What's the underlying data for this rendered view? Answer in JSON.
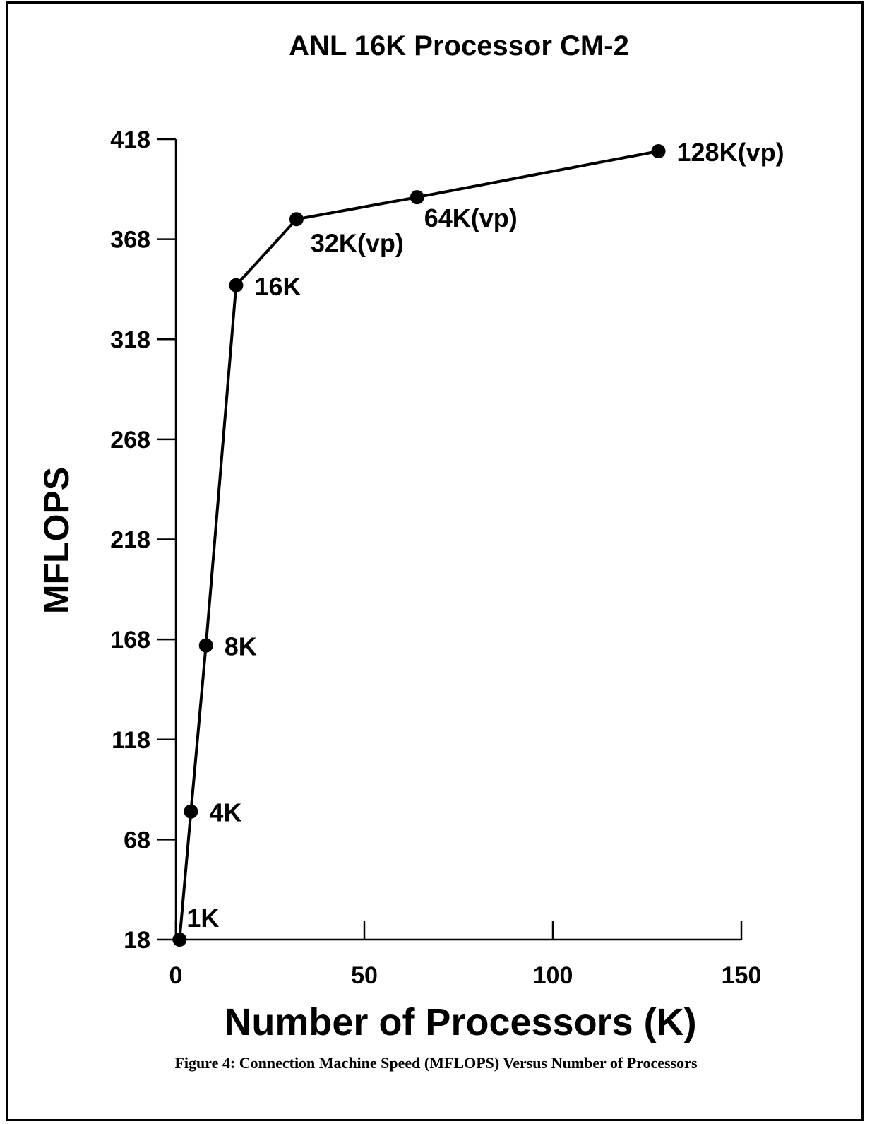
{
  "caption": "Figure 4:  Connection Machine Speed (MFLOPS) Versus Number of Processors",
  "chart_data": {
    "type": "line",
    "title": "ANL 16K Processor CM-2",
    "xlabel": "Number of Processors (K)",
    "ylabel": "MFLOPS",
    "xlim": [
      0,
      150
    ],
    "ylim": [
      18,
      418
    ],
    "xticks": [
      0,
      50,
      100,
      150
    ],
    "yticks": [
      18,
      68,
      118,
      168,
      218,
      268,
      318,
      368,
      418
    ],
    "grid": false,
    "legend": "none",
    "series": [
      {
        "x": [
          1,
          4,
          8,
          16,
          32,
          64,
          128
        ],
        "y": [
          18,
          82,
          165,
          345,
          378,
          389,
          412
        ],
        "point_labels": [
          "1K",
          "4K",
          "8K",
          "16K",
          "32K(vp)",
          "64K(vp)",
          "128K(vp)"
        ]
      }
    ]
  }
}
